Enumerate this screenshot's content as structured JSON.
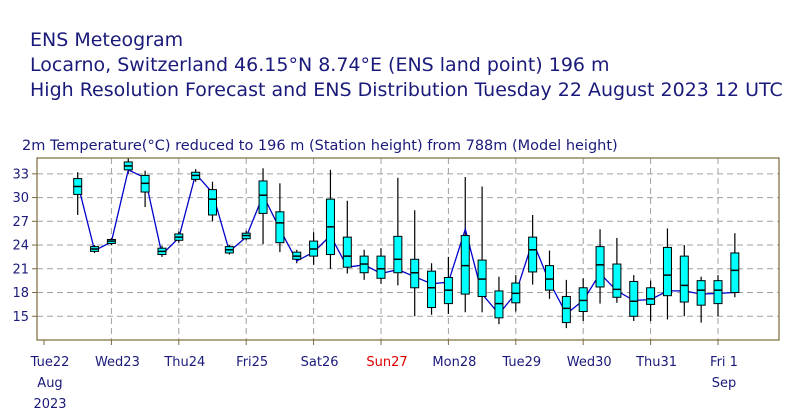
{
  "header": {
    "line1": "ENS Meteogram",
    "line2": "Locarno, Switzerland 46.15°N 8.74°E (ENS land point) 196 m",
    "line3": "High Resolution Forecast and ENS Distribution Tuesday 22 August 2023 12 UTC"
  },
  "colors": {
    "title": "#1a1a7a",
    "box_fill": "#00ffff",
    "hres_line": "#0000cc",
    "grid": "#a0a0a0",
    "frame": "#7a6a3a",
    "sunday": "#e00000"
  },
  "chart_data": {
    "type": "box",
    "title": "2m Temperature(°C) reduced to 196 m (Station height) from 788m (Model height)",
    "ylim": [
      12,
      35
    ],
    "yticks": [
      15,
      18,
      21,
      24,
      27,
      30,
      33
    ],
    "xlim_days": [
      0,
      10.8
    ],
    "grid": true,
    "day_labels": [
      {
        "day": 0,
        "label": "Tue22",
        "sub1": "Aug",
        "sub2": "2023",
        "sunday": false
      },
      {
        "day": 1,
        "label": "Wed23",
        "sub1": "",
        "sub2": "",
        "sunday": false
      },
      {
        "day": 2,
        "label": "Thu24",
        "sub1": "",
        "sub2": "",
        "sunday": false
      },
      {
        "day": 3,
        "label": "Fri25",
        "sub1": "",
        "sub2": "",
        "sunday": false
      },
      {
        "day": 4,
        "label": "Sat26",
        "sub1": "",
        "sub2": "",
        "sunday": false
      },
      {
        "day": 5,
        "label": "Sun27",
        "sub1": "",
        "sub2": "",
        "sunday": true
      },
      {
        "day": 6,
        "label": "Mon28",
        "sub1": "",
        "sub2": "",
        "sunday": false
      },
      {
        "day": 7,
        "label": "Tue29",
        "sub1": "",
        "sub2": "",
        "sunday": false
      },
      {
        "day": 8,
        "label": "Wed30",
        "sub1": "",
        "sub2": "",
        "sunday": false
      },
      {
        "day": 9,
        "label": "Thu31",
        "sub1": "",
        "sub2": "",
        "sunday": false
      },
      {
        "day": 10,
        "label": "Fri 1",
        "sub1": "Sep",
        "sub2": "",
        "sunday": false
      }
    ],
    "boxes": [
      {
        "t": 0.5,
        "min": 27.8,
        "q1": 30.4,
        "med": 31.4,
        "q3": 32.4,
        "max": 33.2,
        "hres": 31.8
      },
      {
        "t": 0.75,
        "min": 23.0,
        "q1": 23.2,
        "med": 23.5,
        "q3": 23.8,
        "max": 24.0,
        "hres": 23.3
      },
      {
        "t": 1.0,
        "min": 24.0,
        "q1": 24.2,
        "med": 24.5,
        "q3": 24.7,
        "max": 24.9,
        "hres": 24.4
      },
      {
        "t": 1.25,
        "min": 33.0,
        "q1": 33.5,
        "med": 34.0,
        "q3": 34.5,
        "max": 35.0,
        "hres": 33.5
      },
      {
        "t": 1.5,
        "min": 28.8,
        "q1": 30.7,
        "med": 31.8,
        "q3": 32.8,
        "max": 33.4,
        "hres": 32.5
      },
      {
        "t": 1.75,
        "min": 22.5,
        "q1": 22.8,
        "med": 23.2,
        "q3": 23.6,
        "max": 23.9,
        "hres": 22.8
      },
      {
        "t": 2.0,
        "min": 24.3,
        "q1": 24.6,
        "med": 25.0,
        "q3": 25.4,
        "max": 25.7,
        "hres": 24.9
      },
      {
        "t": 2.25,
        "min": 32.0,
        "q1": 32.3,
        "med": 32.8,
        "q3": 33.2,
        "max": 33.6,
        "hres": 33.0
      },
      {
        "t": 2.5,
        "min": 27.0,
        "q1": 27.8,
        "med": 29.8,
        "q3": 31.0,
        "max": 32.0,
        "hres": 30.6
      },
      {
        "t": 2.75,
        "min": 22.8,
        "q1": 23.0,
        "med": 23.4,
        "q3": 23.8,
        "max": 24.0,
        "hres": 23.2
      },
      {
        "t": 3.0,
        "min": 24.6,
        "q1": 24.8,
        "med": 25.2,
        "q3": 25.5,
        "max": 25.8,
        "hres": 25.0
      },
      {
        "t": 3.25,
        "min": 24.1,
        "q1": 28.0,
        "med": 30.3,
        "q3": 32.1,
        "max": 33.7,
        "hres": 30.3
      },
      {
        "t": 3.5,
        "min": 23.1,
        "q1": 24.3,
        "med": 26.8,
        "q3": 28.2,
        "max": 31.8,
        "hres": 26.0
      },
      {
        "t": 3.75,
        "min": 21.7,
        "q1": 22.2,
        "med": 22.6,
        "q3": 23.1,
        "max": 23.4,
        "hres": 22.0
      },
      {
        "t": 4.0,
        "min": 21.5,
        "q1": 22.6,
        "med": 23.5,
        "q3": 24.5,
        "max": 25.6,
        "hres": 23.1
      },
      {
        "t": 4.25,
        "min": 21.0,
        "q1": 22.8,
        "med": 26.3,
        "q3": 29.8,
        "max": 33.5,
        "hres": 25.2
      },
      {
        "t": 4.5,
        "min": 20.4,
        "q1": 21.2,
        "med": 22.6,
        "q3": 25.0,
        "max": 29.6,
        "hres": 21.2
      },
      {
        "t": 4.75,
        "min": 19.6,
        "q1": 20.5,
        "med": 21.6,
        "q3": 22.6,
        "max": 23.4,
        "hres": 21.5
      },
      {
        "t": 5.0,
        "min": 19.1,
        "q1": 19.8,
        "med": 21.0,
        "q3": 22.6,
        "max": 23.6,
        "hres": 20.4
      },
      {
        "t": 5.25,
        "min": 18.9,
        "q1": 20.5,
        "med": 22.2,
        "q3": 25.1,
        "max": 32.5,
        "hres": 20.9
      },
      {
        "t": 5.5,
        "min": 15.0,
        "q1": 18.6,
        "med": 20.5,
        "q3": 22.2,
        "max": 28.4,
        "hres": 20.0
      },
      {
        "t": 5.75,
        "min": 15.2,
        "q1": 16.1,
        "med": 18.6,
        "q3": 20.7,
        "max": 21.7,
        "hres": 19.1
      },
      {
        "t": 6.0,
        "min": 15.3,
        "q1": 16.6,
        "med": 18.3,
        "q3": 19.9,
        "max": 22.5,
        "hres": 19.3
      },
      {
        "t": 6.25,
        "min": 15.5,
        "q1": 17.8,
        "med": 21.4,
        "q3": 25.2,
        "max": 32.6,
        "hres": 26.0
      },
      {
        "t": 6.5,
        "min": 15.5,
        "q1": 17.5,
        "med": 19.7,
        "q3": 22.1,
        "max": 31.4,
        "hres": 17.8
      },
      {
        "t": 6.75,
        "min": 14.0,
        "q1": 14.8,
        "med": 16.6,
        "q3": 18.2,
        "max": 20.0,
        "hres": 15.3
      },
      {
        "t": 7.0,
        "min": 15.6,
        "q1": 16.7,
        "med": 17.9,
        "q3": 19.2,
        "max": 20.2,
        "hres": 17.9
      },
      {
        "t": 7.25,
        "min": 19.0,
        "q1": 20.6,
        "med": 23.4,
        "q3": 25.0,
        "max": 27.8,
        "hres": 24.5
      },
      {
        "t": 7.5,
        "min": 17.2,
        "q1": 18.3,
        "med": 19.7,
        "q3": 21.4,
        "max": 23.3,
        "hres": 19.3
      },
      {
        "t": 7.75,
        "min": 13.5,
        "q1": 14.2,
        "med": 16.0,
        "q3": 17.5,
        "max": 19.6,
        "hres": 15.3
      },
      {
        "t": 8.0,
        "min": 14.4,
        "q1": 15.6,
        "med": 17.0,
        "q3": 18.6,
        "max": 19.8,
        "hres": 17.0
      },
      {
        "t": 8.25,
        "min": 16.6,
        "q1": 18.7,
        "med": 21.5,
        "q3": 23.8,
        "max": 26.0,
        "hres": 20.4
      },
      {
        "t": 8.5,
        "min": 16.7,
        "q1": 17.4,
        "med": 18.4,
        "q3": 21.6,
        "max": 24.9,
        "hres": 18.2
      },
      {
        "t": 8.75,
        "min": 14.4,
        "q1": 15.0,
        "med": 16.9,
        "q3": 19.4,
        "max": 20.2,
        "hres": 17.0
      },
      {
        "t": 9.0,
        "min": 14.4,
        "q1": 16.5,
        "med": 17.2,
        "q3": 18.6,
        "max": 19.5,
        "hres": 17.1
      },
      {
        "t": 9.25,
        "min": 14.6,
        "q1": 17.6,
        "med": 20.2,
        "q3": 23.7,
        "max": 26.1,
        "hres": 18.2
      },
      {
        "t": 9.5,
        "min": 15.0,
        "q1": 16.8,
        "med": 18.9,
        "q3": 22.6,
        "max": 24.0,
        "hres": 18.2
      },
      {
        "t": 9.75,
        "min": 14.2,
        "q1": 16.4,
        "med": 18.3,
        "q3": 19.5,
        "max": 20.0,
        "hres": 17.8
      },
      {
        "t": 10.0,
        "min": 15.0,
        "q1": 16.6,
        "med": 18.3,
        "q3": 19.5,
        "max": 20.2,
        "hres": 17.9
      },
      {
        "t": 10.25,
        "min": 17.4,
        "q1": 18.0,
        "med": 20.8,
        "q3": 23.0,
        "max": 25.5,
        "hres": 18.0
      }
    ]
  }
}
